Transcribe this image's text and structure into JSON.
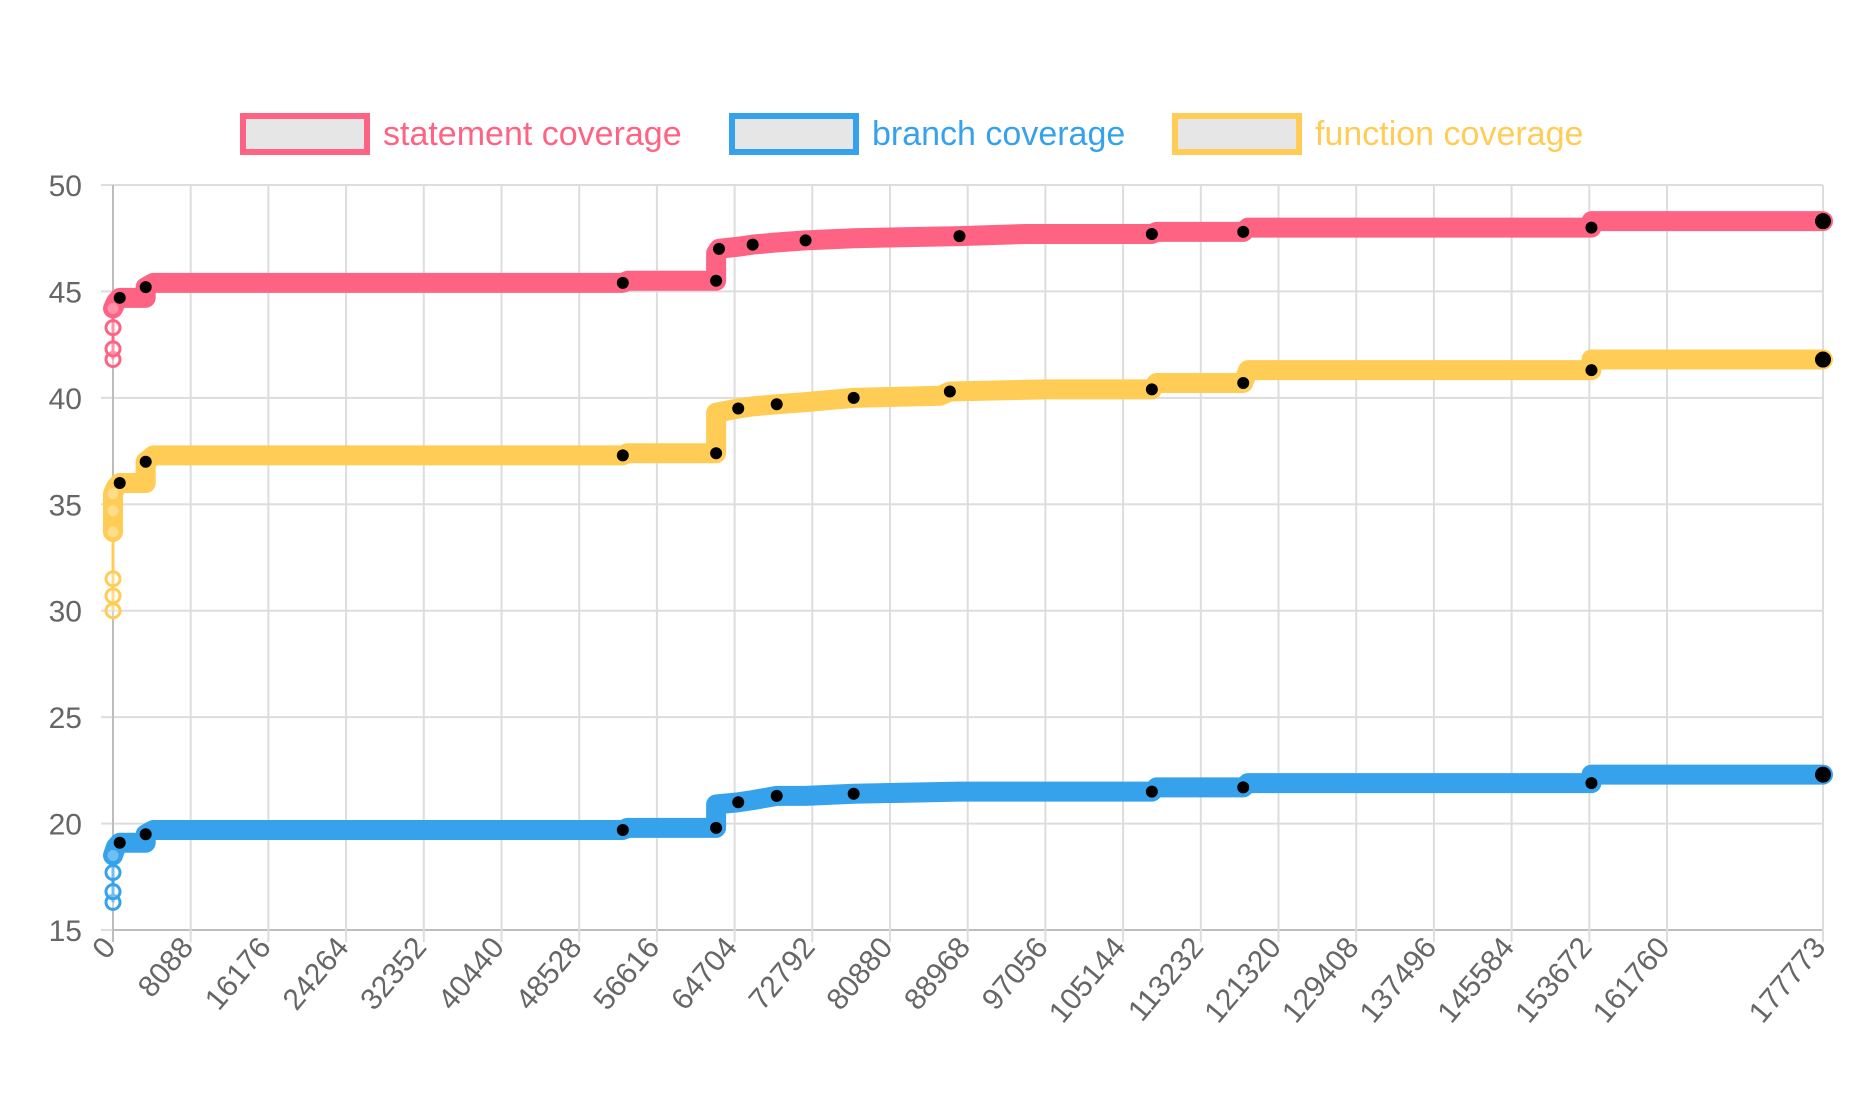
{
  "chart_data": {
    "type": "line",
    "title": "",
    "xlabel": "",
    "ylabel": "",
    "ylim": [
      15,
      50
    ],
    "y_ticks": [
      "15",
      "20",
      "25",
      "30",
      "35",
      "40",
      "45",
      "50"
    ],
    "xlim": [
      0,
      177773
    ],
    "x_ticks": [
      "0",
      "8088",
      "16176",
      "24264",
      "32352",
      "40440",
      "48528",
      "56616",
      "64704",
      "72792",
      "80880",
      "88968",
      "97056",
      "105144",
      "113232",
      "121320",
      "129408",
      "137496",
      "145584",
      "153672",
      "161760",
      "177773"
    ],
    "grid": true,
    "legend_position": "top",
    "series": [
      {
        "name": "statement coverage",
        "color": "#ff6384",
        "points": [
          [
            0,
            41.8
          ],
          [
            0,
            42.3
          ],
          [
            0,
            43.3
          ],
          [
            0,
            44.2
          ],
          [
            300,
            44.5
          ],
          [
            700,
            44.7
          ],
          [
            3400,
            44.7
          ],
          [
            3400,
            45.2
          ],
          [
            4200,
            45.4
          ],
          [
            53000,
            45.4
          ],
          [
            53500,
            45.5
          ],
          [
            62700,
            45.5
          ],
          [
            62700,
            46.8
          ],
          [
            63000,
            47.0
          ],
          [
            65000,
            47.1
          ],
          [
            66500,
            47.2
          ],
          [
            69000,
            47.3
          ],
          [
            72000,
            47.4
          ],
          [
            77000,
            47.5
          ],
          [
            88000,
            47.6
          ],
          [
            95000,
            47.7
          ],
          [
            108000,
            47.7
          ],
          [
            108500,
            47.8
          ],
          [
            117500,
            47.8
          ],
          [
            118000,
            48.0
          ],
          [
            153700,
            48.0
          ],
          [
            153700,
            48.3
          ],
          [
            177773,
            48.3
          ]
        ]
      },
      {
        "name": "branch coverage",
        "color": "#36a2eb",
        "points": [
          [
            0,
            16.3
          ],
          [
            0,
            16.8
          ],
          [
            0,
            17.7
          ],
          [
            0,
            18.5
          ],
          [
            300,
            18.9
          ],
          [
            700,
            19.1
          ],
          [
            3400,
            19.1
          ],
          [
            3400,
            19.5
          ],
          [
            4200,
            19.7
          ],
          [
            53000,
            19.7
          ],
          [
            53500,
            19.8
          ],
          [
            62700,
            19.8
          ],
          [
            62700,
            20.9
          ],
          [
            65000,
            21.0
          ],
          [
            66500,
            21.1
          ],
          [
            69000,
            21.3
          ],
          [
            72000,
            21.3
          ],
          [
            77000,
            21.4
          ],
          [
            88000,
            21.5
          ],
          [
            108000,
            21.5
          ],
          [
            108500,
            21.7
          ],
          [
            117500,
            21.7
          ],
          [
            118000,
            21.9
          ],
          [
            153700,
            21.9
          ],
          [
            153700,
            22.3
          ],
          [
            177773,
            22.3
          ]
        ]
      },
      {
        "name": "function coverage",
        "color": "#ffcd56",
        "points": [
          [
            0,
            30.0
          ],
          [
            0,
            30.7
          ],
          [
            0,
            31.5
          ],
          [
            0,
            33.7
          ],
          [
            0,
            34.7
          ],
          [
            0,
            35.5
          ],
          [
            300,
            35.8
          ],
          [
            700,
            36.0
          ],
          [
            3400,
            36.0
          ],
          [
            3400,
            37.0
          ],
          [
            4200,
            37.3
          ],
          [
            53000,
            37.3
          ],
          [
            53500,
            37.4
          ],
          [
            62700,
            37.4
          ],
          [
            62700,
            39.3
          ],
          [
            65000,
            39.5
          ],
          [
            66500,
            39.6
          ],
          [
            69000,
            39.7
          ],
          [
            72000,
            39.8
          ],
          [
            77000,
            40.0
          ],
          [
            86000,
            40.1
          ],
          [
            87000,
            40.3
          ],
          [
            97000,
            40.4
          ],
          [
            108000,
            40.4
          ],
          [
            108500,
            40.7
          ],
          [
            117500,
            40.7
          ],
          [
            118000,
            41.3
          ],
          [
            153700,
            41.3
          ],
          [
            153700,
            41.8
          ],
          [
            177773,
            41.8
          ]
        ]
      }
    ]
  }
}
